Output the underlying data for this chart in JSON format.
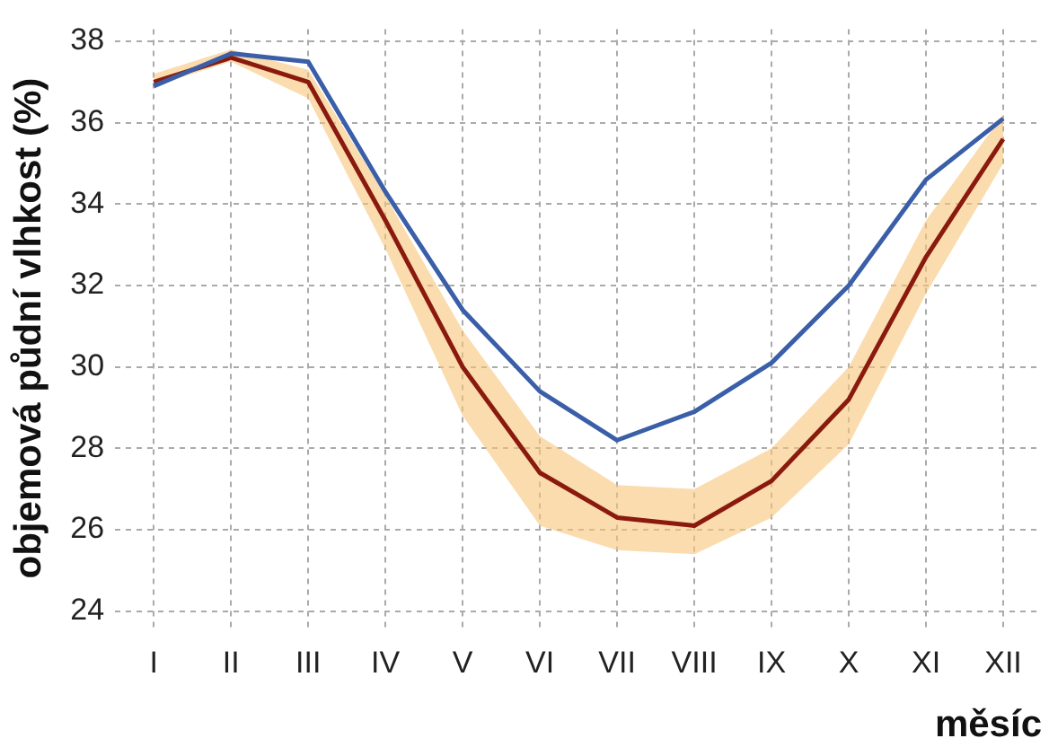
{
  "chart_data": {
    "type": "line",
    "xlabel": "měsíc",
    "ylabel": "objemová půdní vlhkost (%)",
    "categories": [
      "I",
      "II",
      "III",
      "IV",
      "V",
      "VI",
      "VII",
      "VIII",
      "IX",
      "X",
      "XI",
      "XII"
    ],
    "series": [
      {
        "color": "#3a5fa8",
        "values": [
          36.9,
          37.7,
          37.5,
          34.3,
          31.4,
          29.4,
          28.2,
          28.9,
          30.1,
          32.0,
          34.6,
          36.1
        ]
      },
      {
        "color": "#8b1a0e",
        "values": [
          37.0,
          37.6,
          37.0,
          33.6,
          30.0,
          27.4,
          26.3,
          26.1,
          27.2,
          29.2,
          32.7,
          35.6
        ],
        "lower": [
          36.9,
          37.5,
          36.6,
          32.9,
          28.8,
          26.1,
          25.5,
          25.4,
          26.3,
          28.1,
          31.8,
          35.0
        ],
        "upper": [
          37.2,
          37.8,
          37.3,
          34.2,
          30.9,
          28.3,
          27.1,
          27.0,
          28.0,
          30.0,
          33.6,
          36.2
        ]
      }
    ],
    "ylim": [
      23.6,
      38.3
    ],
    "yticks": [
      24,
      26,
      28,
      30,
      32,
      34,
      36,
      38
    ],
    "grid": true,
    "legend": false,
    "marker": "none",
    "line_style": "solid"
  }
}
